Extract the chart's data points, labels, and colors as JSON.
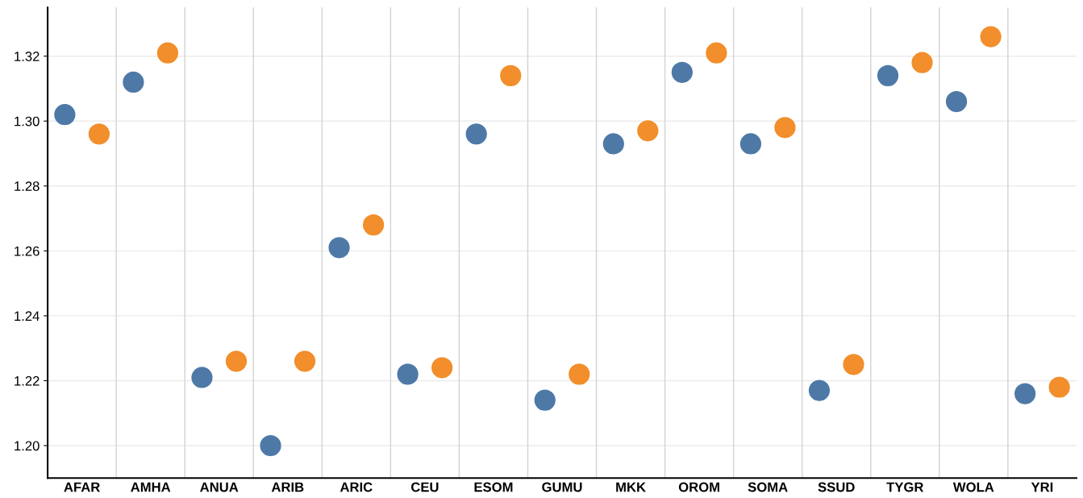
{
  "chart_data": {
    "type": "scatter",
    "categories": [
      "AFAR",
      "AMHA",
      "ANUA",
      "ARIB",
      "ARIC",
      "CEU",
      "ESOM",
      "GUMU",
      "MKK",
      "OROM",
      "SOMA",
      "SSUD",
      "TYGR",
      "WOLA",
      "YRI"
    ],
    "series": [
      {
        "color": "#4e79a7",
        "values": [
          1.302,
          1.312,
          1.221,
          1.2,
          1.261,
          1.222,
          1.296,
          1.214,
          1.293,
          1.315,
          1.293,
          1.217,
          1.314,
          1.306,
          1.216
        ]
      },
      {
        "color": "#f28e2b",
        "values": [
          1.296,
          1.321,
          1.226,
          1.226,
          1.268,
          1.224,
          1.314,
          1.222,
          1.297,
          1.321,
          1.298,
          1.225,
          1.318,
          1.326,
          1.218
        ]
      }
    ],
    "ylim": [
      1.19,
      1.335
    ],
    "yticks": [
      {
        "value": 1.2,
        "label": "1.20"
      },
      {
        "value": 1.22,
        "label": "1.22"
      },
      {
        "value": 1.24,
        "label": "1.24"
      },
      {
        "value": 1.26,
        "label": "1.26"
      },
      {
        "value": 1.28,
        "label": "1.28"
      },
      {
        "value": 1.3,
        "label": "1.30"
      },
      {
        "value": 1.32,
        "label": "1.32"
      }
    ],
    "grid": true,
    "marker": "circle",
    "legend": false
  }
}
